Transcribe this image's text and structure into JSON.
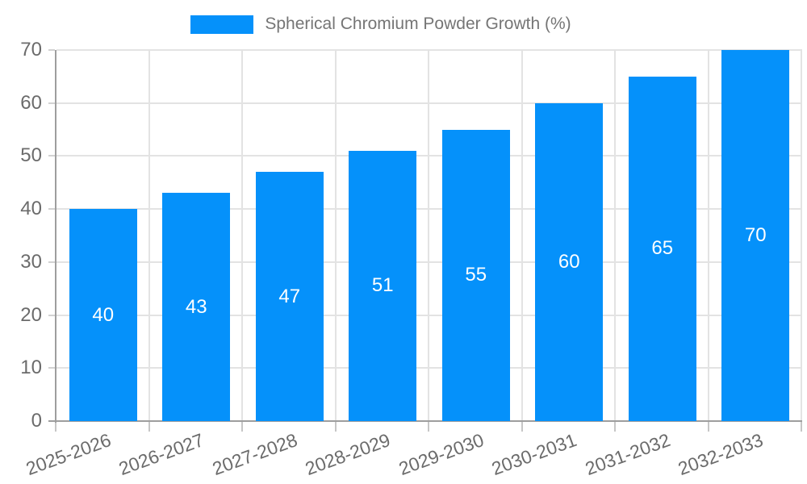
{
  "chart_data": {
    "type": "bar",
    "title": "Spherical Chromium Powder Growth (%)",
    "categories": [
      "2025-2026",
      "2026-2027",
      "2027-2028",
      "2028-2029",
      "2029-2030",
      "2030-2031",
      "2031-2032",
      "2032-2033"
    ],
    "values": [
      40,
      43,
      47,
      51,
      55,
      60,
      65,
      70
    ],
    "series": [
      {
        "name": "Spherical Chromium Powder Growth (%)",
        "values": [
          40,
          43,
          47,
          51,
          55,
          60,
          65,
          70
        ]
      }
    ],
    "xlabel": "",
    "ylabel": "",
    "ylim": [
      0,
      70
    ],
    "y_ticks": [
      0,
      10,
      20,
      30,
      40,
      50,
      60,
      70
    ],
    "grid": true,
    "legend_position": "top-center",
    "bar_color": "#0591fa",
    "value_label_color": "#ffffff",
    "x_label_rotation_deg": -20
  },
  "legend": {
    "label": "Spherical Chromium Powder Growth (%)"
  }
}
